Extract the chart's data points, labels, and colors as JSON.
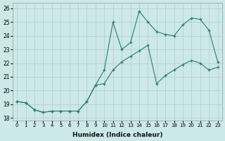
{
  "xlabel": "Humidex (Indice chaleur)",
  "ylabel": "",
  "line_color": "#2d7d6e",
  "bg_color": "#cce8e8",
  "grid_color": "#b0cccc",
  "xlim": [
    -0.5,
    23.5
  ],
  "ylim": [
    17.8,
    26.4
  ],
  "xticks": [
    0,
    1,
    2,
    3,
    4,
    5,
    6,
    7,
    8,
    9,
    10,
    11,
    12,
    13,
    14,
    15,
    16,
    17,
    18,
    19,
    20,
    21,
    22,
    23
  ],
  "yticks": [
    18,
    19,
    20,
    21,
    22,
    23,
    24,
    25,
    26
  ],
  "series1_x": [
    0,
    1,
    2,
    3,
    4,
    5,
    6,
    7,
    8,
    9,
    10,
    11,
    12,
    13,
    14,
    15,
    16,
    17,
    18,
    19,
    20,
    21,
    22,
    23
  ],
  "series1_y": [
    19.2,
    19.1,
    18.6,
    18.4,
    18.5,
    18.5,
    18.5,
    18.5,
    19.2,
    20.4,
    21.5,
    25.0,
    23.0,
    23.5,
    25.8,
    25.0,
    24.3,
    24.1,
    24.0,
    24.8,
    25.3,
    25.2,
    24.4,
    22.1
  ],
  "series2_x": [
    0,
    1,
    2,
    3,
    4,
    5,
    6,
    7,
    8,
    9,
    10,
    11,
    12,
    13,
    14,
    15,
    16,
    17,
    18,
    19,
    20,
    21,
    22,
    23
  ],
  "series2_y": [
    19.2,
    19.1,
    18.6,
    18.4,
    18.5,
    18.5,
    18.5,
    18.5,
    19.2,
    20.4,
    20.5,
    21.5,
    22.1,
    22.5,
    22.9,
    23.3,
    20.5,
    21.1,
    21.5,
    21.9,
    22.2,
    22.0,
    21.5,
    21.7
  ]
}
